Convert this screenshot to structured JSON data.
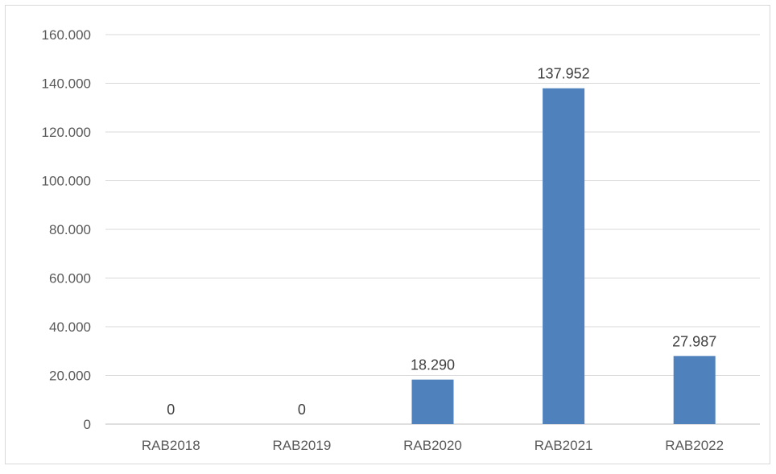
{
  "chart_data": {
    "type": "bar",
    "categories": [
      "RAB2018",
      "RAB2019",
      "RAB2020",
      "RAB2021",
      "RAB2022"
    ],
    "values": [
      0,
      0,
      18290,
      137952,
      27987
    ],
    "data_labels": [
      "0",
      "0",
      "18.290",
      "137.952",
      "27.987"
    ],
    "title": "",
    "xlabel": "",
    "ylabel": "",
    "ylim": [
      0,
      160000
    ],
    "yticks": [
      0,
      20000,
      40000,
      60000,
      80000,
      100000,
      120000,
      140000,
      160000
    ],
    "ytick_labels": [
      "0",
      "20.000",
      "40.000",
      "60.000",
      "80.000",
      "100.000",
      "120.000",
      "140.000",
      "160.000"
    ],
    "grid": true,
    "legend": "none",
    "bar_color": "#4F81BD"
  }
}
